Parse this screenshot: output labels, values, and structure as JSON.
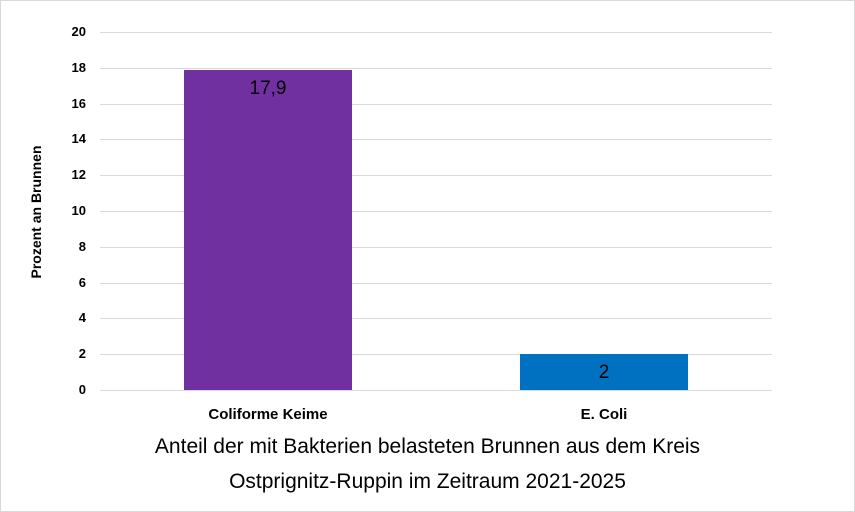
{
  "chart_data": {
    "type": "bar",
    "title": "Anteil der mit Bakterien belasteten Brunnen aus dem Kreis Ostprignitz-Ruppin im Zeitraum 2021-2025",
    "title_line1": "Anteil der mit Bakterien belasteten Brunnen aus dem Kreis",
    "title_line2": "Ostprignitz-Ruppin im Zeitraum 2021-2025",
    "title_position": "bottom",
    "xlabel": "",
    "ylabel": "Prozent an Brunnen",
    "categories": [
      "Coliforme Keime",
      "E. Coli"
    ],
    "values": [
      17.9,
      2
    ],
    "value_labels": [
      "17,9",
      "2"
    ],
    "bar_colors": [
      "#7030a0",
      "#0070c0"
    ],
    "ylim": [
      0,
      20
    ],
    "yticks": [
      "0",
      "2",
      "4",
      "6",
      "8",
      "10",
      "12",
      "14",
      "16",
      "18",
      "20"
    ],
    "grid": true,
    "legend": null
  }
}
